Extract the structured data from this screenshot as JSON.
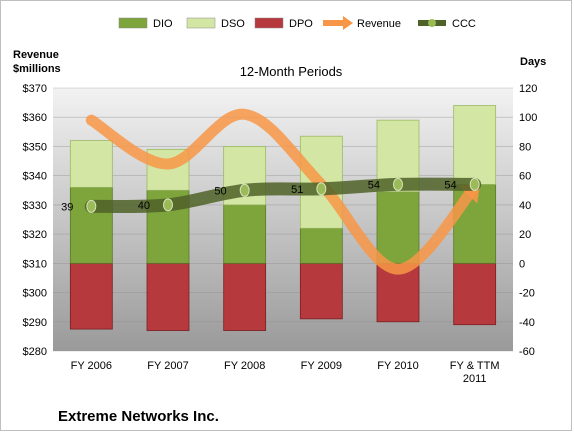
{
  "chart_data": {
    "type": "bar",
    "title": "12-Month Periods",
    "company": "Extreme Networks Inc.",
    "y_left": {
      "label_line1": "Revenue",
      "label_line2": "$millions",
      "min": 280,
      "max": 370,
      "step": 10,
      "prefix": "$"
    },
    "y_right": {
      "label": "Days",
      "min": -60,
      "max": 120,
      "step": 20
    },
    "categories": [
      [
        "FY 2006"
      ],
      [
        "FY 2007"
      ],
      [
        "FY 2008"
      ],
      [
        "FY 2009"
      ],
      [
        "FY 2010"
      ],
      [
        "FY & TTM",
        "2011"
      ]
    ],
    "legend": [
      "DIO",
      "DSO",
      "DPO",
      "Revenue",
      "CCC"
    ],
    "series": [
      {
        "name": "DIO",
        "axis": "days",
        "values": [
          52,
          50,
          40,
          24,
          49,
          54
        ]
      },
      {
        "name": "DSO",
        "axis": "days",
        "values": [
          32,
          28,
          40,
          63,
          49,
          54
        ]
      },
      {
        "name": "DPO",
        "axis": "days",
        "values": [
          -45,
          -46,
          -46,
          -38,
          -40,
          -42
        ]
      },
      {
        "name": "Revenue",
        "axis": "revenue",
        "values": [
          359,
          344,
          361,
          337,
          308,
          336
        ]
      },
      {
        "name": "CCC",
        "axis": "days",
        "values": [
          39,
          40,
          50,
          51,
          54,
          54
        ],
        "labels": [
          "39",
          "40",
          "50",
          "51",
          "54",
          "54"
        ]
      }
    ],
    "colors": {
      "DIO": "#7ea43c",
      "DSO": "#d4e6a4",
      "DPO": "#b5393d",
      "Revenue": "#f79646",
      "CCC": "#4f6228",
      "plot_bg_top": "#f2f2f2",
      "plot_bg_bottom": "#9c9c9c"
    },
    "grid": true,
    "legend_position": "top"
  }
}
